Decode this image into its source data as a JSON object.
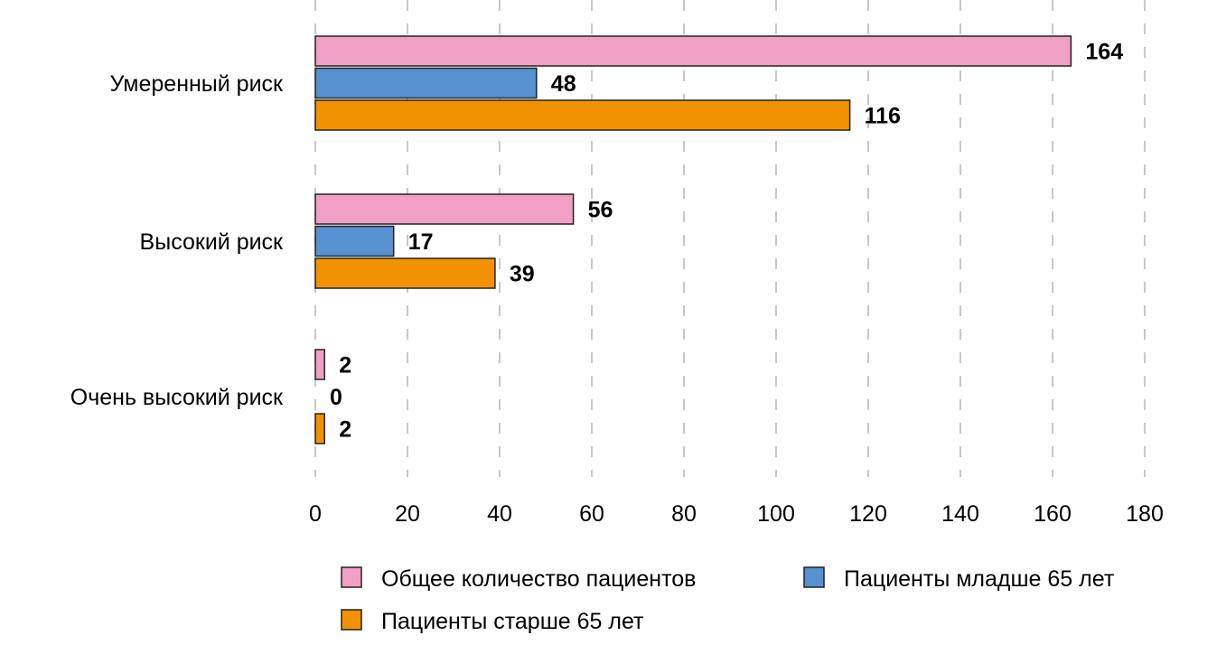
{
  "chart_data": {
    "type": "bar",
    "orientation": "horizontal",
    "title": "",
    "xlabel": "",
    "ylabel": "",
    "categories": [
      "Умеренный риск",
      "Высокий риск",
      "Очень высокий риск"
    ],
    "series": [
      {
        "name": "Общее количество пациентов",
        "color": "#f1a0c4",
        "values": [
          164,
          56,
          2
        ]
      },
      {
        "name": "Пациенты младше 65 лет",
        "color": "#5592cf",
        "values": [
          48,
          17,
          0
        ]
      },
      {
        "name": "Пациенты старше 65 лет",
        "color": "#f39200",
        "values": [
          116,
          39,
          2
        ]
      }
    ],
    "xlim": [
      0,
      180
    ],
    "xticks": [
      0,
      20,
      40,
      60,
      80,
      100,
      120,
      140,
      160,
      180
    ],
    "grid": "vertical dashed",
    "legend_position": "bottom"
  }
}
